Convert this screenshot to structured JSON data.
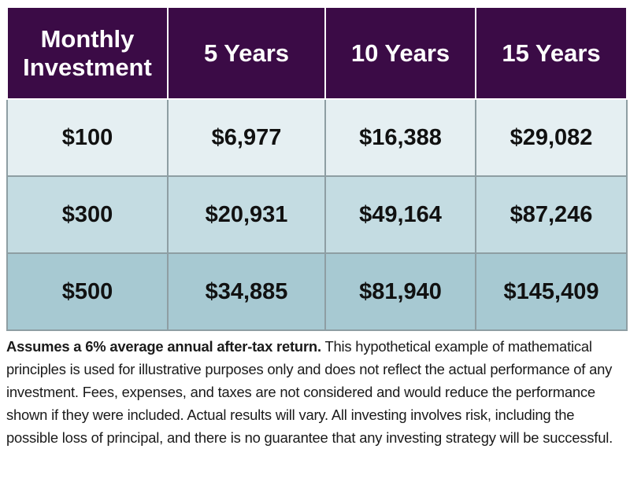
{
  "table": {
    "header": [
      "Monthly Investment",
      "5 Years",
      "10 Years",
      "15 Years"
    ],
    "rows": [
      [
        "$100",
        "$6,977",
        "$16,388",
        "$29,082"
      ],
      [
        "$300",
        "$20,931",
        "$49,164",
        "$87,246"
      ],
      [
        "$500",
        "$34,885",
        "$81,940",
        "$145,409"
      ]
    ]
  },
  "footnote": {
    "bold": "Assumes a 6% average annual after-tax return.",
    "text": "This hypothetical example of mathematical principles is used for illustrative purposes only and does not reflect the actual performance of any investment. Fees, expenses, and taxes are not considered and would reduce the performance shown if they were included. Actual results will vary. All investing involves risk, including the possible loss of principal, and there is no guarantee that any investing strategy will be successful."
  }
}
